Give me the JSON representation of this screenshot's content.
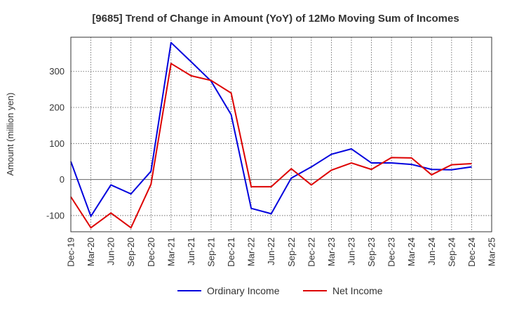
{
  "chart_data": {
    "type": "line",
    "title": "[9685]  Trend of Change in Amount (YoY) of 12Mo Moving Sum of Incomes",
    "xlabel": "",
    "ylabel": "Amount (million yen)",
    "categories": [
      "Dec-19",
      "Mar-20",
      "Jun-20",
      "Sep-20",
      "Dec-20",
      "Mar-21",
      "Jun-21",
      "Sep-21",
      "Dec-21",
      "Mar-22",
      "Jun-22",
      "Sep-22",
      "Dec-22",
      "Mar-23",
      "Jun-23",
      "Sep-23",
      "Dec-23",
      "Mar-24",
      "Jun-24",
      "Sep-24",
      "Dec-24",
      "Mar-25"
    ],
    "ylim": [
      -145,
      395
    ],
    "yticks": [
      -100,
      0,
      100,
      200,
      300
    ],
    "grid": true,
    "legend_position": "bottom",
    "series": [
      {
        "name": "Ordinary Income",
        "color": "#0000dd",
        "values": [
          50,
          -102,
          -15,
          -40,
          23,
          380,
          327,
          273,
          180,
          -80,
          -95,
          4,
          35,
          70,
          85,
          46,
          46,
          42,
          28,
          27,
          35,
          null
        ]
      },
      {
        "name": "Net Income",
        "color": "#dd0000",
        "values": [
          -48,
          -134,
          -93,
          -134,
          -13,
          322,
          288,
          275,
          240,
          -20,
          -20,
          30,
          -15,
          26,
          46,
          28,
          61,
          60,
          13,
          41,
          44,
          null
        ]
      }
    ]
  }
}
